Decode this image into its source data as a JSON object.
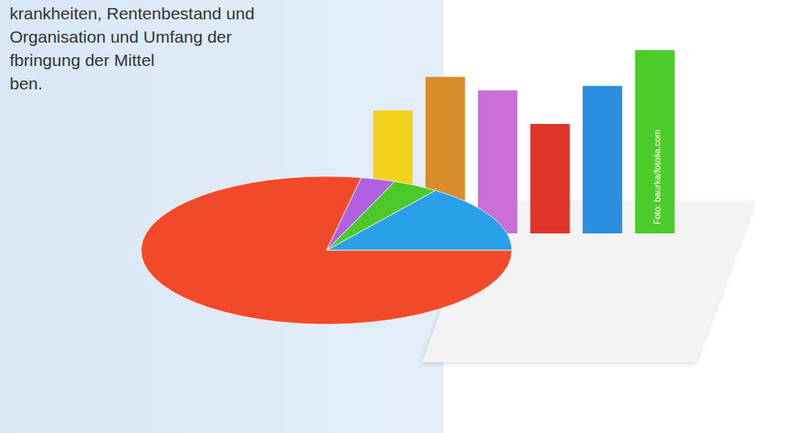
{
  "text": {
    "lines": [
      "krankheiten, Rentenbestand und",
      "Organisation und Umfang der",
      "fbringung der Mittel",
      "ben."
    ],
    "credit": "Foto: baurka/fotolia.com"
  },
  "chart_data": [
    {
      "type": "bar",
      "categories": [
        null,
        null,
        null,
        null,
        null,
        null
      ],
      "values": [
        55,
        70,
        64,
        49,
        66,
        82
      ],
      "colors": [
        "#f2d21c",
        "#d98c2a",
        "#c96fd6",
        "#e0352a",
        "#2a8fe0",
        "#4ccc2a"
      ],
      "ylim": [
        0,
        90
      ],
      "tick_labels": false
    },
    {
      "type": "pie",
      "categories": [
        null,
        null,
        null,
        null
      ],
      "values": [
        15,
        4,
        3,
        78
      ],
      "colors": [
        "#2aa0e8",
        "#4cc82a",
        "#b060e0",
        "#f04a2a"
      ]
    }
  ]
}
